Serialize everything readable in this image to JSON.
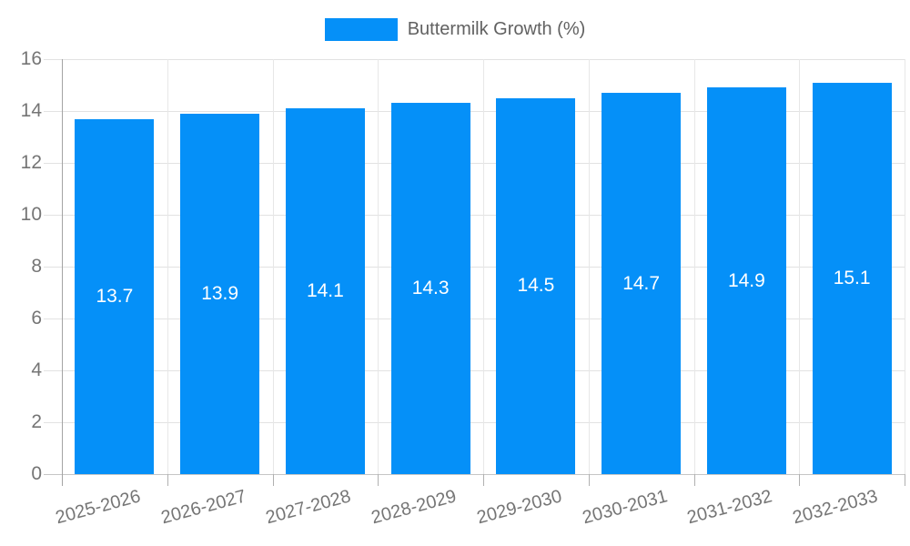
{
  "chart_data": {
    "type": "bar",
    "title": "",
    "legend": {
      "label": "Buttermilk Growth (%)",
      "position": "top"
    },
    "categories": [
      "2025-2026",
      "2026-2027",
      "2027-2028",
      "2028-2029",
      "2029-2030",
      "2030-2031",
      "2031-2032",
      "2032-2033"
    ],
    "series": [
      {
        "name": "Buttermilk Growth (%)",
        "values": [
          13.7,
          13.9,
          14.1,
          14.3,
          14.5,
          14.7,
          14.9,
          15.1
        ]
      }
    ],
    "value_labels": [
      "13.7",
      "13.9",
      "14.1",
      "14.3",
      "14.5",
      "14.7",
      "14.9",
      "15.1"
    ],
    "xlabel": "",
    "ylabel": "",
    "ylim": [
      0,
      16
    ],
    "yticks": [
      0,
      2,
      4,
      6,
      8,
      10,
      12,
      14,
      16
    ],
    "grid": true,
    "bar_label_position": "center"
  },
  "colors": {
    "bar": "#0590f8",
    "bar_label": "#ffffff",
    "axis_text": "#757575",
    "legend_text": "#616161",
    "gridline": "#e2e2e2",
    "axis_line": "#a3a3a3",
    "background": "#ffffff"
  }
}
